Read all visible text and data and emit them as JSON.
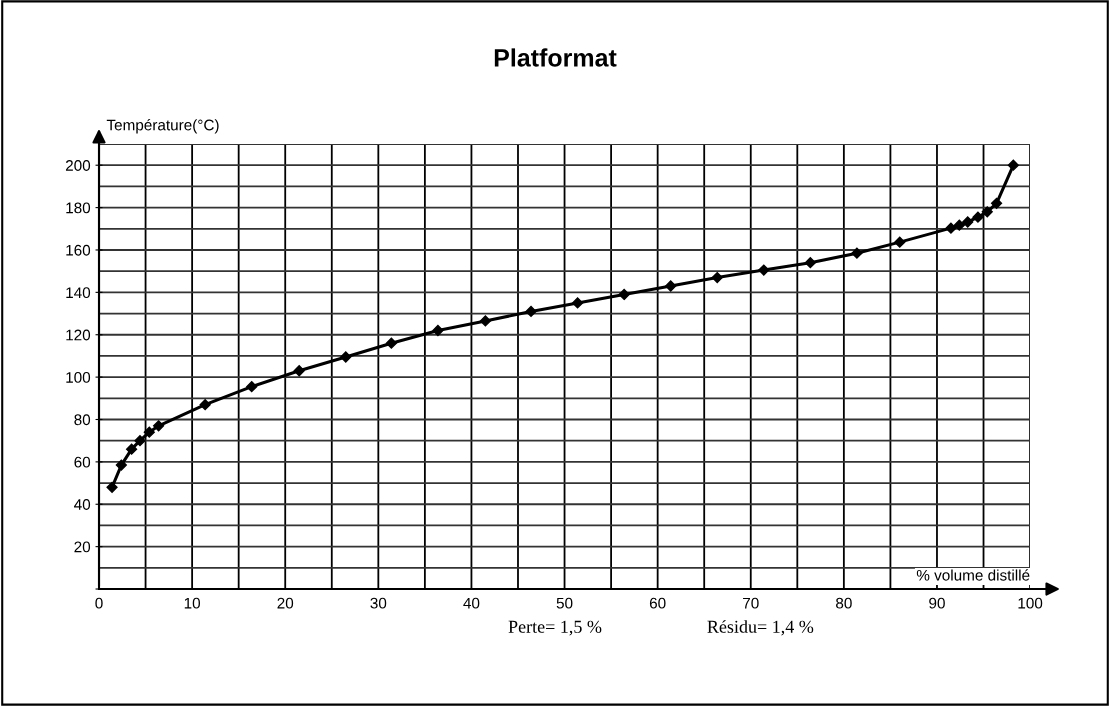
{
  "chart_data": {
    "type": "line",
    "title": "Platformat",
    "xlabel": "% volume distillé",
    "ylabel": "Température(°C)",
    "annotations": [
      "Perte= 1,5 %",
      "Résidu= 1,4 %"
    ],
    "x": [
      1.4,
      2.4,
      3.5,
      4.4,
      5.4,
      6.4,
      11.4,
      16.4,
      21.5,
      26.5,
      31.4,
      36.4,
      41.5,
      46.4,
      51.4,
      56.4,
      61.4,
      66.4,
      71.4,
      76.4,
      81.4,
      86.0,
      91.5,
      92.4,
      93.3,
      94.4,
      95.4,
      96.4,
      98.2
    ],
    "series": [
      {
        "color": "#000000",
        "values": [
          48,
          58.5,
          66,
          70,
          74,
          77,
          87,
          95.5,
          103,
          109.5,
          116,
          122,
          126.5,
          131,
          135,
          139,
          143,
          147,
          150.5,
          154,
          158.5,
          163.7,
          170.3,
          171.7,
          173.2,
          175.5,
          178,
          182,
          200
        ]
      }
    ],
    "xlim": [
      0,
      100
    ],
    "ylim": [
      0,
      210
    ],
    "xticks": [
      {
        "value": 0,
        "label": "0"
      },
      10,
      20,
      30,
      40,
      50,
      60,
      70,
      80,
      90,
      100
    ],
    "yticks": [
      {
        "value": 0,
        "label": null
      },
      20,
      40,
      60,
      80,
      100,
      120,
      140,
      160,
      180,
      200
    ],
    "grid": true,
    "marker": "diamond",
    "line_style": "solid",
    "legend": false
  }
}
